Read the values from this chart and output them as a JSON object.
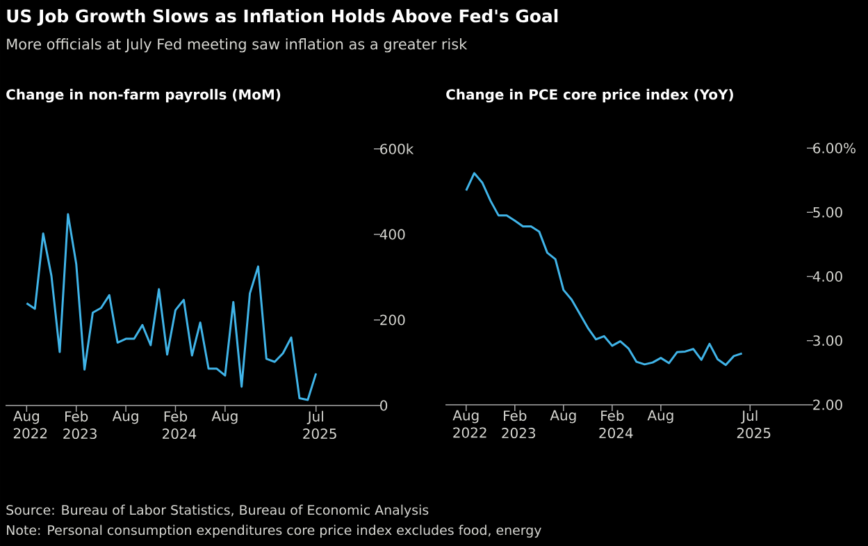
{
  "chart_data": [
    {
      "type": "line",
      "title": "Change in non-farm payrolls (MoM)",
      "color": "#40b4e8",
      "x": [
        "2022-08",
        "2022-09",
        "2022-10",
        "2022-11",
        "2022-12",
        "2023-01",
        "2023-02",
        "2023-03",
        "2023-04",
        "2023-05",
        "2023-06",
        "2023-07",
        "2023-08",
        "2023-09",
        "2023-10",
        "2023-11",
        "2023-12",
        "2024-01",
        "2024-02",
        "2024-03",
        "2024-04",
        "2024-05",
        "2024-06",
        "2024-07",
        "2024-08",
        "2024-09",
        "2024-10",
        "2024-11",
        "2024-12",
        "2025-01",
        "2025-02",
        "2025-03",
        "2025-04",
        "2025-05",
        "2025-06",
        "2025-07"
      ],
      "values": [
        239,
        226,
        402,
        303,
        125,
        447,
        331,
        84,
        217,
        228,
        258,
        147,
        156,
        156,
        188,
        141,
        272,
        119,
        223,
        247,
        117,
        194,
        86,
        86,
        70,
        242,
        44,
        262,
        325,
        109,
        102,
        122,
        159,
        17,
        13,
        75
      ],
      "xlim": [
        "2022-05-15",
        "2026-02"
      ],
      "ylim": [
        0,
        600
      ],
      "xticks": [
        {
          "value": "2022-08",
          "label": "Aug 2022"
        },
        {
          "value": "2023-02",
          "label": "Feb 2023"
        },
        {
          "value": "2023-08",
          "label": "Aug"
        },
        {
          "value": "2024-02",
          "label": "Feb 2024"
        },
        {
          "value": "2024-08",
          "label": "Aug"
        },
        {
          "value": "2025-07",
          "label": "Jul 2025"
        }
      ],
      "yticks": [
        0,
        200,
        400,
        {
          "value": 600,
          "label": "600k"
        }
      ],
      "annotations": [
        "US Job Growth Slows as Inflation Holds Above Fed's Goal",
        "More officials at July Fed meeting saw inflation as a greater risk",
        "Source: Bureau of Labor Statistics, Bureau of Economic Analysis",
        "Note: Personal consumption expenditures core price index excludes food, energy"
      ]
    },
    {
      "type": "line",
      "title": "Change in PCE core price index (YoY)",
      "color": "#40b4e8",
      "x": [
        "2022-08",
        "2022-09",
        "2022-10",
        "2022-11",
        "2022-12",
        "2023-01",
        "2023-02",
        "2023-03",
        "2023-04",
        "2023-05",
        "2023-06",
        "2023-07",
        "2023-08",
        "2023-09",
        "2023-10",
        "2023-11",
        "2023-12",
        "2024-01",
        "2024-02",
        "2024-03",
        "2024-04",
        "2024-05",
        "2024-06",
        "2024-07",
        "2024-08",
        "2024-09",
        "2024-10",
        "2024-11",
        "2024-12",
        "2025-01",
        "2025-02",
        "2025-03",
        "2025-04",
        "2025-05",
        "2025-06"
      ],
      "values": [
        5.34,
        5.61,
        5.46,
        5.18,
        4.95,
        4.95,
        4.87,
        4.78,
        4.78,
        4.7,
        4.37,
        4.27,
        3.79,
        3.64,
        3.42,
        3.2,
        3.02,
        3.07,
        2.92,
        2.99,
        2.88,
        2.67,
        2.63,
        2.66,
        2.73,
        2.65,
        2.82,
        2.83,
        2.87,
        2.7,
        2.95,
        2.71,
        2.62,
        2.76,
        2.8
      ],
      "xlim": [
        "2022-05-15",
        "2026-02"
      ],
      "ylim": [
        2,
        6
      ],
      "xticks": [
        {
          "value": "2022-08",
          "label": "Aug 2022"
        },
        {
          "value": "2023-02",
          "label": "Feb 2023"
        },
        {
          "value": "2023-08",
          "label": "Aug"
        },
        {
          "value": "2024-02",
          "label": "Feb 2024"
        },
        {
          "value": "2024-08",
          "label": "Aug"
        },
        {
          "value": "2025-07",
          "label": "Jul 2025"
        }
      ],
      "yticks": [
        {
          "value": 2,
          "label": "2.00"
        },
        {
          "value": 3,
          "label": "3.00"
        },
        {
          "value": 4,
          "label": "4.00"
        },
        {
          "value": 5,
          "label": "5.00"
        },
        {
          "value": 6,
          "label": "6.00%"
        }
      ]
    }
  ]
}
